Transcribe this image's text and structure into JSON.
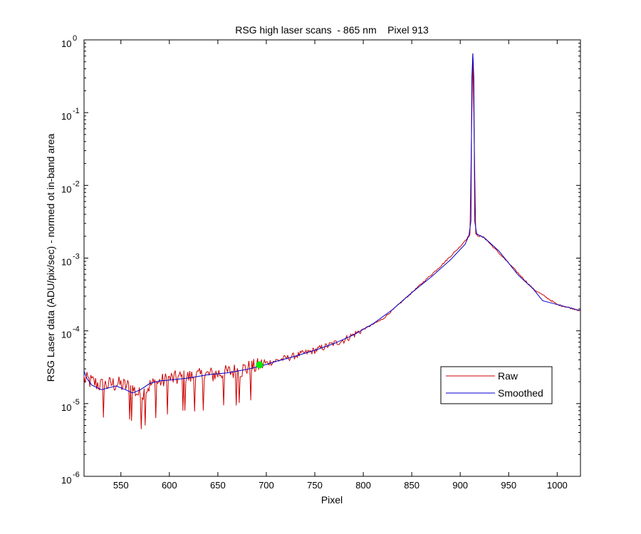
{
  "chart_data": {
    "type": "line",
    "title": "RSG high laser scans  - 865 nm    Pixel 913",
    "xlabel": "Pixel",
    "ylabel": "RSG Laser data (ADU/pix/sec) - normed ot in-band area",
    "xlim": [
      512,
      1024
    ],
    "ylim": [
      1e-06,
      1
    ],
    "yscale": "log",
    "x_ticks": [
      550,
      600,
      650,
      700,
      750,
      800,
      850,
      900,
      950,
      1000
    ],
    "y_tick_mantissas": [
      "10",
      "10",
      "10",
      "10",
      "10",
      "10",
      "10"
    ],
    "y_tick_exponents": [
      "-6",
      "-5",
      "-4",
      "-3",
      "-2",
      "-1",
      "0"
    ],
    "grid": false,
    "legend_position": "lower-right",
    "series": [
      {
        "name": "Raw",
        "color": "#cc0000",
        "noisy": true,
        "points": [
          [
            512,
            2.2e-05
          ],
          [
            530,
            1.8e-05
          ],
          [
            545,
            1.9e-05
          ],
          [
            560,
            1.7e-05
          ],
          [
            570,
            1.3e-05
          ],
          [
            580,
            1.8e-05
          ],
          [
            600,
            2.2e-05
          ],
          [
            630,
            2.4e-05
          ],
          [
            660,
            2.7e-05
          ],
          [
            690,
            3.3e-05
          ],
          [
            700,
            3.6e-05
          ],
          [
            720,
            4.2e-05
          ],
          [
            750,
            5.4e-05
          ],
          [
            780,
            7.5e-05
          ],
          [
            800,
            0.000105
          ],
          [
            820,
            0.000145
          ],
          [
            850,
            0.000335
          ],
          [
            880,
            0.00078
          ],
          [
            900,
            0.00145
          ],
          [
            910,
            0.0021
          ],
          [
            913,
            0.65
          ],
          [
            916,
            0.0021
          ],
          [
            925,
            0.0019
          ],
          [
            950,
            0.00085
          ],
          [
            975,
            0.00038
          ],
          [
            1000,
            0.00023
          ],
          [
            1024,
            0.00019
          ]
        ]
      },
      {
        "name": "Smoothed",
        "color": "#0000cc",
        "noisy": false,
        "points": [
          [
            512,
            2.8e-05
          ],
          [
            515,
            2.2e-05
          ],
          [
            520,
            1.8e-05
          ],
          [
            530,
            1.55e-05
          ],
          [
            545,
            1.75e-05
          ],
          [
            555,
            1.55e-05
          ],
          [
            562,
            1.4e-05
          ],
          [
            570,
            1.55e-05
          ],
          [
            580,
            1.9e-05
          ],
          [
            590,
            2.05e-05
          ],
          [
            600,
            2.1e-05
          ],
          [
            620,
            2.25e-05
          ],
          [
            640,
            2.5e-05
          ],
          [
            660,
            2.65e-05
          ],
          [
            680,
            2.95e-05
          ],
          [
            695,
            3.3e-05
          ],
          [
            710,
            3.8e-05
          ],
          [
            730,
            4.5e-05
          ],
          [
            750,
            5.4e-05
          ],
          [
            770,
            6.7e-05
          ],
          [
            790,
            8.8e-05
          ],
          [
            810,
            0.000125
          ],
          [
            830,
            0.000195
          ],
          [
            850,
            0.000335
          ],
          [
            870,
            0.00055
          ],
          [
            890,
            0.00095
          ],
          [
            905,
            0.00155
          ],
          [
            909,
            0.00205
          ],
          [
            911,
            0.0032
          ],
          [
            912,
            0.3
          ],
          [
            913,
            0.65
          ],
          [
            914,
            0.3
          ],
          [
            915,
            0.0032
          ],
          [
            917,
            0.00215
          ],
          [
            925,
            0.0019
          ],
          [
            940,
            0.00125
          ],
          [
            960,
            0.00058
          ],
          [
            975,
            0.00038
          ],
          [
            985,
            0.00026
          ],
          [
            1000,
            0.00023
          ],
          [
            1024,
            0.00019
          ]
        ]
      }
    ],
    "highlight_point": {
      "x": 693,
      "y": 3.4e-05,
      "color": "#00ee00"
    }
  }
}
